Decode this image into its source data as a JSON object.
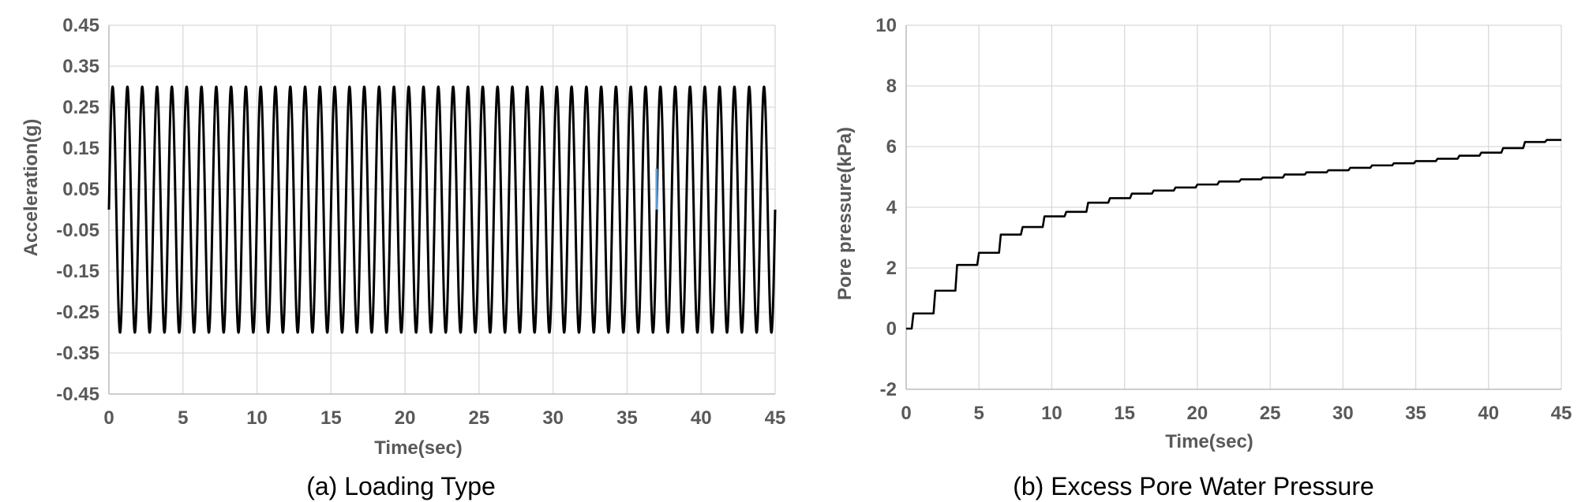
{
  "colors": {
    "series": "#000000",
    "marker": "#5b9bd5",
    "grid": "#d9d9d9",
    "text": "#595959"
  },
  "chart_data": [
    {
      "type": "line",
      "caption": "(a) Loading Type",
      "xlabel": "Time(sec)",
      "ylabel": "Acceleration(g)",
      "xlim": [
        0,
        45
      ],
      "ylim": [
        -0.45,
        0.45
      ],
      "x_ticks": [
        0,
        5,
        10,
        15,
        20,
        25,
        30,
        35,
        40,
        45
      ],
      "x_tick_labels": [
        "0",
        "5",
        "10",
        "15",
        "20",
        "25",
        "30",
        "35",
        "40",
        "45"
      ],
      "y_ticks": [
        0.45,
        0.35,
        0.25,
        0.15,
        0.05,
        -0.05,
        -0.15,
        -0.25,
        -0.35,
        -0.45
      ],
      "y_tick_labels": [
        "0.45",
        "0.35",
        "0.25",
        "0.15",
        "0.05",
        "-0.05",
        "-0.15",
        "-0.25",
        "-0.35",
        "-0.45"
      ],
      "grid": true,
      "series": [
        {
          "kind": "sine",
          "amplitude": 0.3,
          "frequency_hz": 1,
          "x_start": 0,
          "x_end": 45,
          "color": "#000000"
        },
        {
          "kind": "marker",
          "x": 37,
          "y_from": 0,
          "y_to": 0.1,
          "color": "#5b9bd5"
        }
      ]
    },
    {
      "type": "line",
      "caption": "(b) Excess Pore Water Pressure",
      "xlabel": "Time(sec)",
      "ylabel": "Pore pressure(kPa)",
      "xlim": [
        0,
        45
      ],
      "ylim": [
        -2,
        10
      ],
      "x_ticks": [
        0,
        5,
        10,
        15,
        20,
        25,
        30,
        35,
        40,
        45
      ],
      "x_tick_labels": [
        "0",
        "5",
        "10",
        "15",
        "20",
        "25",
        "30",
        "35",
        "40",
        "45"
      ],
      "y_ticks": [
        10,
        8,
        6,
        4,
        2,
        0,
        -2
      ],
      "y_tick_labels": [
        "10",
        "8",
        "6",
        "4",
        "2",
        "0",
        "-2"
      ],
      "grid": true,
      "series": [
        {
          "kind": "steps",
          "color": "#000000",
          "x": [
            0,
            0.5,
            2,
            3.5,
            5,
            6.5,
            8,
            9.5,
            11,
            12.5,
            14,
            15.5,
            17,
            18.5,
            20,
            21.5,
            23,
            24.5,
            26,
            27.5,
            29,
            30.5,
            32,
            33.5,
            35,
            36.5,
            38,
            39.5,
            41,
            42.5,
            44,
            45
          ],
          "y": [
            0,
            0.5,
            1.25,
            2.1,
            2.5,
            3.1,
            3.35,
            3.7,
            3.85,
            4.15,
            4.3,
            4.45,
            4.55,
            4.65,
            4.75,
            4.85,
            4.92,
            4.98,
            5.08,
            5.15,
            5.22,
            5.3,
            5.38,
            5.45,
            5.52,
            5.6,
            5.7,
            5.8,
            5.95,
            6.15,
            6.22,
            6.22
          ]
        }
      ]
    }
  ]
}
